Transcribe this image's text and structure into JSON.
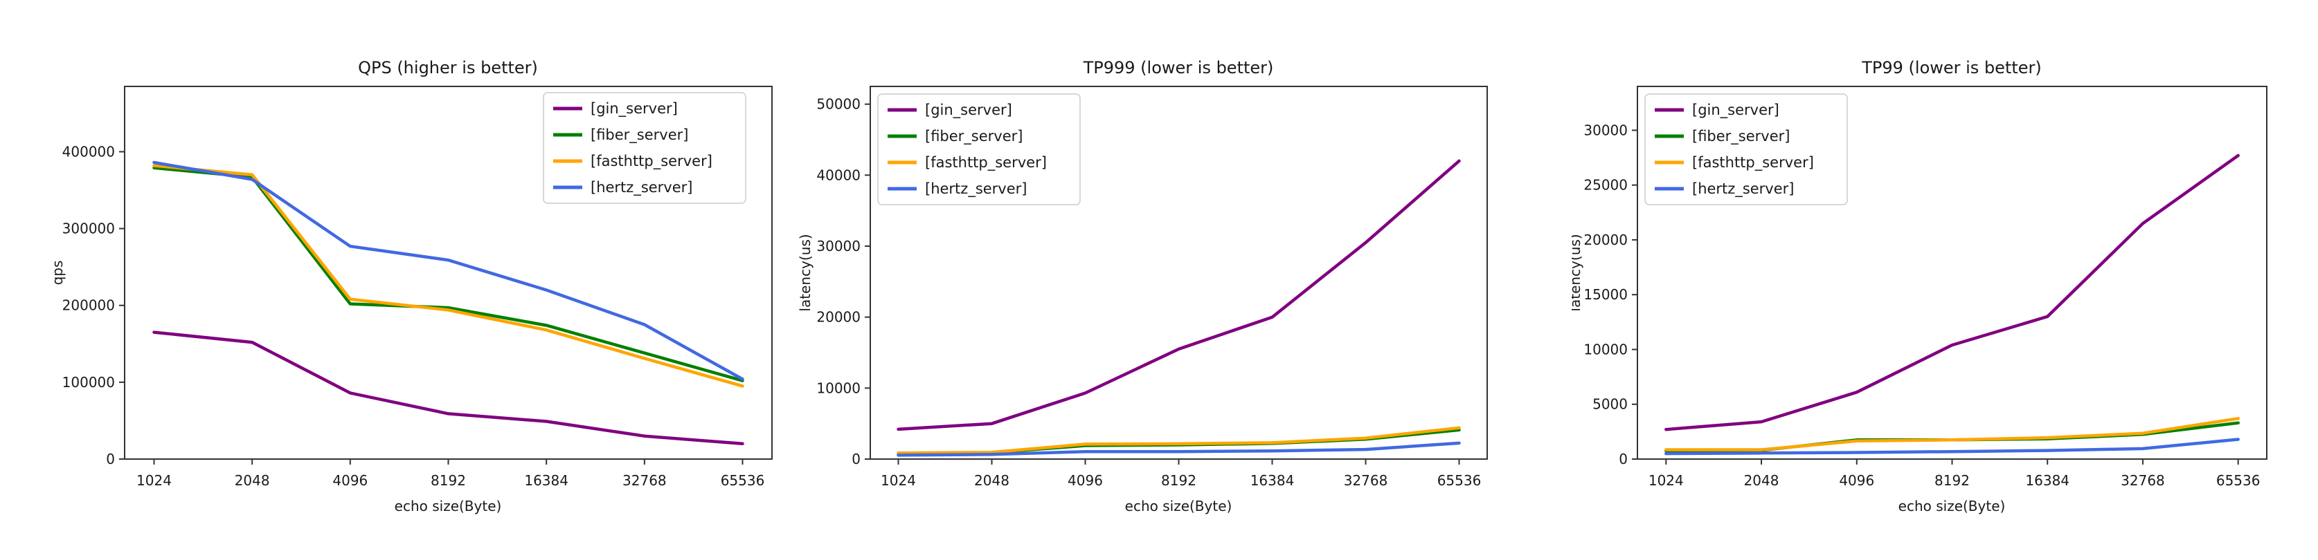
{
  "figure": {
    "background": "#ffffff",
    "axis_color": "#333333",
    "text_color": "#1a1a1a",
    "legend_border_color": "#cccccc",
    "legend_background": "#ffffff"
  },
  "chart_data": [
    {
      "type": "line",
      "title": "QPS (higher is better)",
      "xlabel": "echo size(Byte)",
      "ylabel": "qps",
      "categories": [
        "1024",
        "2048",
        "4096",
        "8192",
        "16384",
        "32768",
        "65536"
      ],
      "ylim": [
        0,
        485000
      ],
      "yticks": [
        0,
        100000,
        200000,
        300000,
        400000
      ],
      "grid": false,
      "legend_position": "upper-right",
      "series": [
        {
          "name": "[gin_server]",
          "color": "#800080",
          "values": [
            165000,
            152000,
            86000,
            59000,
            49000,
            30000,
            20000
          ]
        },
        {
          "name": "[fiber_server]",
          "color": "#008000",
          "values": [
            379000,
            367000,
            202000,
            197000,
            174000,
            138000,
            102000
          ]
        },
        {
          "name": "[fasthttp_server]",
          "color": "#ffa500",
          "values": [
            382000,
            370000,
            208000,
            194000,
            168000,
            131000,
            95000
          ]
        },
        {
          "name": "[hertz_server]",
          "color": "#4169e1",
          "values": [
            386000,
            364000,
            277000,
            259000,
            220000,
            175000,
            104000
          ]
        }
      ]
    },
    {
      "type": "line",
      "title": "TP999 (lower is better)",
      "xlabel": "echo size(Byte)",
      "ylabel": "latency(us)",
      "categories": [
        "1024",
        "2048",
        "4096",
        "8192",
        "16384",
        "32768",
        "65536"
      ],
      "ylim": [
        0,
        52500
      ],
      "yticks": [
        0,
        10000,
        20000,
        30000,
        40000,
        50000
      ],
      "grid": false,
      "legend_position": "upper-left",
      "series": [
        {
          "name": "[gin_server]",
          "color": "#800080",
          "values": [
            4200,
            5000,
            9300,
            15500,
            20000,
            30500,
            42000
          ]
        },
        {
          "name": "[fiber_server]",
          "color": "#008000",
          "values": [
            800,
            900,
            1900,
            2000,
            2200,
            2800,
            4100
          ]
        },
        {
          "name": "[fasthttp_server]",
          "color": "#ffa500",
          "values": [
            850,
            950,
            2100,
            2150,
            2300,
            2950,
            4400
          ]
        },
        {
          "name": "[hertz_server]",
          "color": "#4169e1",
          "values": [
            550,
            650,
            1050,
            1050,
            1150,
            1350,
            2250
          ]
        }
      ]
    },
    {
      "type": "line",
      "title": "TP99 (lower is better)",
      "xlabel": "echo size(Byte)",
      "ylabel": "latency(us)",
      "categories": [
        "1024",
        "2048",
        "4096",
        "8192",
        "16384",
        "32768",
        "65536"
      ],
      "ylim": [
        0,
        34000
      ],
      "yticks": [
        0,
        5000,
        10000,
        15000,
        20000,
        25000,
        30000
      ],
      "grid": false,
      "legend_position": "upper-left",
      "series": [
        {
          "name": "[gin_server]",
          "color": "#800080",
          "values": [
            2700,
            3400,
            6100,
            10400,
            13000,
            21500,
            27700
          ]
        },
        {
          "name": "[fiber_server]",
          "color": "#008000",
          "values": [
            750,
            800,
            1750,
            1750,
            1850,
            2250,
            3300
          ]
        },
        {
          "name": "[fasthttp_server]",
          "color": "#ffa500",
          "values": [
            850,
            850,
            1650,
            1750,
            1950,
            2350,
            3700
          ]
        },
        {
          "name": "[hertz_server]",
          "color": "#4169e1",
          "values": [
            500,
            550,
            600,
            680,
            780,
            950,
            1800
          ]
        }
      ]
    }
  ]
}
